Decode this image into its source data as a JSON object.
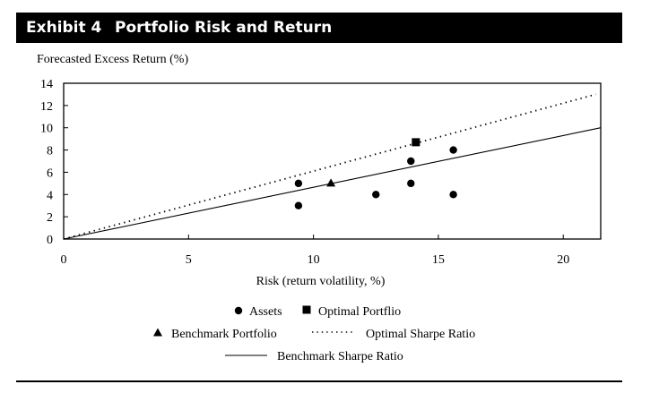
{
  "header": {
    "exhibit": "Exhibit 4",
    "title": "Portfolio Risk and Return"
  },
  "chart_data": {
    "type": "scatter",
    "title": "Portfolio Risk and Return",
    "xlabel": "Risk (return volatility, %)",
    "ylabel": "Forecasted Excess Return (%)",
    "xlim": [
      0,
      21.5
    ],
    "ylim": [
      0,
      14
    ],
    "xticks": [
      "0",
      "5",
      "10",
      "15",
      "20"
    ],
    "yticks": [
      "0",
      "2",
      "4",
      "6",
      "8",
      "10",
      "12",
      "14"
    ],
    "grid": false,
    "legend_position": "bottom-center",
    "series": [
      {
        "name": "Assets",
        "marker": "circle",
        "points": [
          [
            9.4,
            5
          ],
          [
            9.4,
            3
          ],
          [
            12.5,
            4
          ],
          [
            13.9,
            7
          ],
          [
            13.9,
            5
          ],
          [
            15.6,
            8
          ],
          [
            15.6,
            4
          ]
        ]
      },
      {
        "name": "Optimal Portflio",
        "marker": "square",
        "points": [
          [
            14.1,
            8.7
          ]
        ]
      },
      {
        "name": "Benchmark Portfolio",
        "marker": "triangle",
        "points": [
          [
            10.7,
            5
          ]
        ]
      },
      {
        "name": "Optimal Sharpe Ratio",
        "style": "dotted",
        "line": [
          [
            0,
            0
          ],
          [
            21.3,
            13
          ]
        ]
      },
      {
        "name": "Benchmark Sharpe Ratio",
        "style": "solid",
        "line": [
          [
            0,
            0
          ],
          [
            21.5,
            10
          ]
        ]
      }
    ]
  },
  "colors": {
    "ink": "#000000",
    "background": "#ffffff"
  }
}
